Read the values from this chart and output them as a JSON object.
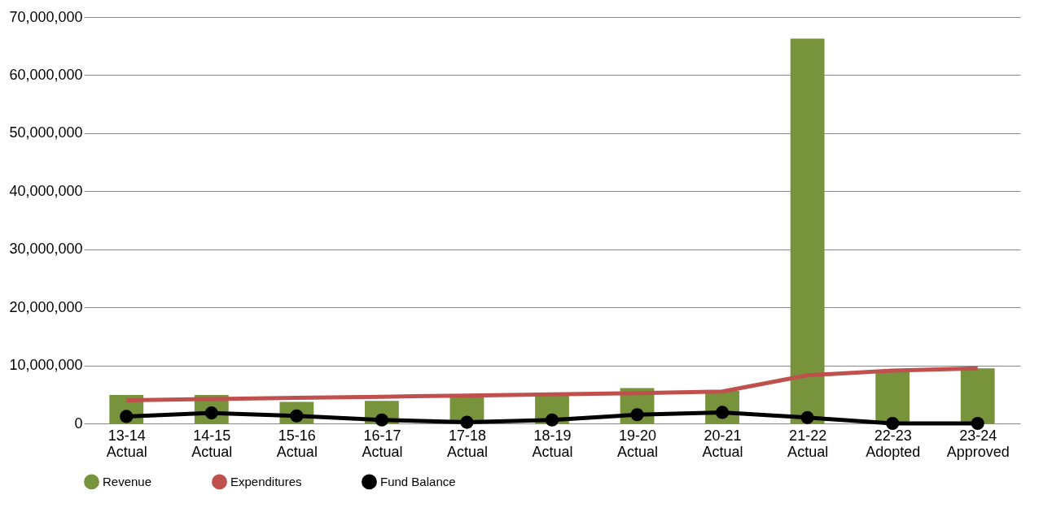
{
  "chart_data": {
    "type": "bar",
    "categories": [
      "13-14 Actual",
      "14-15 Actual",
      "15-16 Actual",
      "16-17 Actual",
      "17-18 Actual",
      "18-19 Actual",
      "19-20 Actual",
      "20-21 Actual",
      "21-22 Actual",
      "22-23 Adopted",
      "23-24 Approved"
    ],
    "series": [
      {
        "name": "Revenue",
        "color": "#77933c",
        "values": [
          4900000,
          4900000,
          3700000,
          3900000,
          4600000,
          4900000,
          6100000,
          5600000,
          66300000,
          9000000,
          9500000
        ]
      },
      {
        "name": "Expenditures",
        "type": "line",
        "color": "#c0504d",
        "marker": "none",
        "values": [
          4000000,
          4200000,
          4400000,
          4600000,
          4800000,
          5000000,
          5200000,
          5500000,
          8300000,
          9100000,
          9500000
        ]
      },
      {
        "name": "Fund Balance",
        "type": "line",
        "color": "#000000",
        "marker": "circle",
        "values": [
          1200000,
          1800000,
          1300000,
          600000,
          200000,
          600000,
          1500000,
          1900000,
          1000000,
          0,
          0
        ]
      }
    ],
    "ylim": [
      0,
      70000000
    ],
    "yticks": [
      {
        "value": 0,
        "label": "0"
      },
      {
        "value": 10000000,
        "label": "10,000,000"
      },
      {
        "value": 20000000,
        "label": "20,000,000"
      },
      {
        "value": 30000000,
        "label": "30,000,000"
      },
      {
        "value": 40000000,
        "label": "40,000,000"
      },
      {
        "value": 50000000,
        "label": "50,000,000"
      },
      {
        "value": 60000000,
        "label": "60,000,000"
      },
      {
        "value": 70000000,
        "label": "70,000,000"
      }
    ],
    "grid": "y",
    "legend": "bottom"
  }
}
